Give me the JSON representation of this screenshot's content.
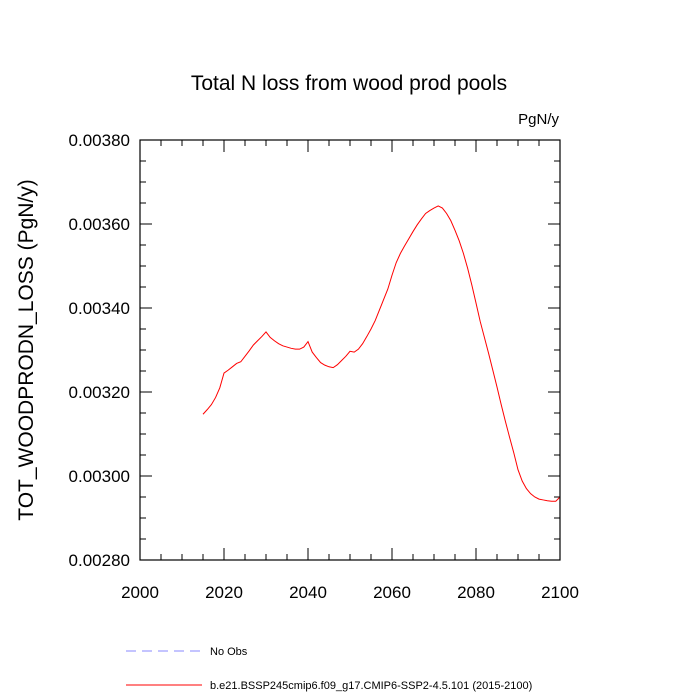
{
  "chart_data": {
    "type": "line",
    "title": "Total N loss from wood prod pools",
    "units_label": "PgN/y",
    "ylabel": "TOT_WOODPRODN_LOSS  (PgN/y)",
    "xlabel": "",
    "xlim": [
      2000,
      2100
    ],
    "ylim": [
      0.0028,
      0.0038
    ],
    "x_ticks": [
      2000,
      2020,
      2040,
      2060,
      2080,
      2100
    ],
    "x_tick_labels": [
      "2000",
      "2020",
      "2040",
      "2060",
      "2080",
      "2100"
    ],
    "y_ticks": [
      0.0028,
      0.003,
      0.0032,
      0.0034,
      0.0036,
      0.0038
    ],
    "y_tick_labels": [
      "0.00280",
      "0.00300",
      "0.00320",
      "0.00340",
      "0.00360",
      "0.00380"
    ],
    "grid": false,
    "legend_position": "bottom",
    "series": [
      {
        "name": "b.e21.BSSP245cmip6.f09_g17.CMIP6-SSP2-4.5.101 (2015-2100)",
        "color": "#ff0000",
        "dash": "solid",
        "x": [
          2015,
          2016,
          2017,
          2018,
          2019,
          2020,
          2021,
          2022,
          2023,
          2024,
          2025,
          2026,
          2027,
          2028,
          2029,
          2030,
          2031,
          2032,
          2033,
          2034,
          2035,
          2036,
          2037,
          2038,
          2039,
          2040,
          2041,
          2042,
          2043,
          2044,
          2045,
          2046,
          2047,
          2048,
          2049,
          2050,
          2051,
          2052,
          2053,
          2054,
          2055,
          2056,
          2057,
          2058,
          2059,
          2060,
          2061,
          2062,
          2063,
          2064,
          2065,
          2066,
          2067,
          2068,
          2069,
          2070,
          2071,
          2072,
          2073,
          2074,
          2075,
          2076,
          2077,
          2078,
          2079,
          2080,
          2081,
          2082,
          2083,
          2084,
          2085,
          2086,
          2087,
          2088,
          2089,
          2090,
          2091,
          2092,
          2093,
          2094,
          2095,
          2096,
          2097,
          2098,
          2099,
          2100
        ],
        "y": [
          0.003147,
          0.003158,
          0.00317,
          0.003187,
          0.00321,
          0.003245,
          0.003252,
          0.00326,
          0.003268,
          0.003272,
          0.003285,
          0.003298,
          0.003312,
          0.003322,
          0.003332,
          0.003343,
          0.00333,
          0.003322,
          0.003315,
          0.00331,
          0.003307,
          0.003304,
          0.003302,
          0.003302,
          0.003307,
          0.00332,
          0.003295,
          0.003282,
          0.00327,
          0.003264,
          0.00326,
          0.003258,
          0.003265,
          0.003275,
          0.003285,
          0.003297,
          0.003295,
          0.003302,
          0.003315,
          0.003332,
          0.00335,
          0.00337,
          0.003395,
          0.00342,
          0.003445,
          0.003478,
          0.003508,
          0.00353,
          0.003548,
          0.003565,
          0.003582,
          0.003598,
          0.003612,
          0.003625,
          0.003632,
          0.003638,
          0.003643,
          0.003638,
          0.003625,
          0.003608,
          0.003585,
          0.00356,
          0.00353,
          0.003495,
          0.003455,
          0.003412,
          0.003368,
          0.00333,
          0.003292,
          0.003252,
          0.003212,
          0.00317,
          0.00313,
          0.003092,
          0.003055,
          0.003015,
          0.002988,
          0.00297,
          0.002958,
          0.00295,
          0.002945,
          0.002943,
          0.002941,
          0.00294,
          0.00294,
          0.00295
        ]
      },
      {
        "name": "No Obs",
        "color": "#8a8aff",
        "dash": "dashed",
        "x": [],
        "y": []
      }
    ]
  }
}
